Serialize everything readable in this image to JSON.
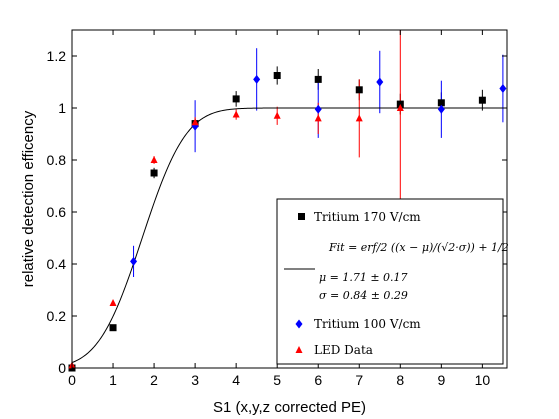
{
  "chart_data": {
    "type": "scatter",
    "xlabel": "S1 (x,y,z corrected PE)",
    "ylabel": "relative detection efficency",
    "xlim": [
      0,
      10.6
    ],
    "ylim": [
      0,
      1.3
    ],
    "x_ticks": [
      "0",
      "1",
      "2",
      "3",
      "4",
      "5",
      "6",
      "7",
      "8",
      "9",
      "10"
    ],
    "y_ticks": [
      "0",
      "0.2",
      "0.4",
      "0.6",
      "0.8",
      "1",
      "1.2"
    ],
    "grid": false,
    "legend_position": "bottom-right",
    "fit": {
      "mu": 1.71,
      "sigma": 0.84,
      "legend_line1": "Fit = erf/2 ((x − μ)/(√2·σ)) + 1/2",
      "legend_line2": "μ = 1.71 ± 0.17",
      "legend_line3": "σ = 0.84 ± 0.29"
    },
    "series": [
      {
        "name": "Tritium 170 V/cm",
        "marker": "square",
        "color": "#000000",
        "points": [
          {
            "x": 0,
            "y": 0.0,
            "err": 0.01
          },
          {
            "x": 1,
            "y": 0.155,
            "err": 0.01
          },
          {
            "x": 2,
            "y": 0.75,
            "err": 0.02
          },
          {
            "x": 3,
            "y": 0.94,
            "err": 0.02
          },
          {
            "x": 4,
            "y": 1.035,
            "err": 0.03
          },
          {
            "x": 5,
            "y": 1.125,
            "err": 0.035
          },
          {
            "x": 6,
            "y": 1.11,
            "err": 0.04
          },
          {
            "x": 7,
            "y": 1.07,
            "err": 0.04
          },
          {
            "x": 8,
            "y": 1.015,
            "err": 0.04
          },
          {
            "x": 9,
            "y": 1.02,
            "err": 0.04
          },
          {
            "x": 10,
            "y": 1.03,
            "err": 0.04
          }
        ]
      },
      {
        "name": "Tritium 100 V/cm",
        "marker": "diamond",
        "color": "#0000ff",
        "points": [
          {
            "x": 1.5,
            "y": 0.41,
            "err": 0.06
          },
          {
            "x": 3,
            "y": 0.93,
            "err": 0.1
          },
          {
            "x": 4.5,
            "y": 1.11,
            "err": 0.12
          },
          {
            "x": 6,
            "y": 0.995,
            "err": 0.11
          },
          {
            "x": 7.5,
            "y": 1.1,
            "err": 0.12
          },
          {
            "x": 9,
            "y": 0.995,
            "err": 0.11
          },
          {
            "x": 10.5,
            "y": 1.075,
            "err": 0.13
          }
        ]
      },
      {
        "name": "LED Data",
        "marker": "triangle",
        "color": "#ff0000",
        "points": [
          {
            "x": 0,
            "y": 0.01,
            "err": 0.005
          },
          {
            "x": 1,
            "y": 0.25,
            "err": 0.01
          },
          {
            "x": 2,
            "y": 0.8,
            "err": 0.015
          },
          {
            "x": 3,
            "y": 0.945,
            "err": 0.02
          },
          {
            "x": 4,
            "y": 0.975,
            "err": 0.02
          },
          {
            "x": 5,
            "y": 0.97,
            "err": 0.035
          },
          {
            "x": 6,
            "y": 0.96,
            "err": 0.06
          },
          {
            "x": 7,
            "y": 0.96,
            "err": 0.15
          },
          {
            "x": 8,
            "y": 1.0,
            "err": 0.35
          }
        ]
      }
    ]
  }
}
